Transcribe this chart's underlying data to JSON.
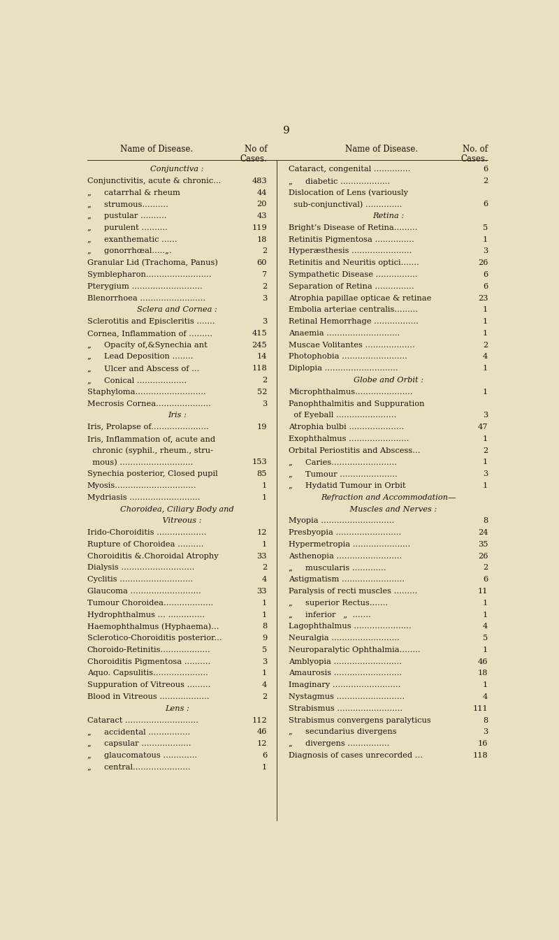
{
  "page_number": "9",
  "background_color": "#e8e0c0",
  "text_color": "#1a1008",
  "col1_header1": "Name of Disease.",
  "col1_header2": "No of\nCases.",
  "col2_header1": "Name of Disease.",
  "col2_header2": "No. of\nCases.",
  "left_column": [
    {
      "text": "Conjunctiva :",
      "style": "italic_section",
      "num": ""
    },
    {
      "text": "Conjunctivitis, acute & chronic...",
      "style": "normal",
      "num": "483"
    },
    {
      "text": "„     catarrhal & rheum",
      "style": "normal",
      "num": "44"
    },
    {
      "text": "„     strumous..........",
      "style": "normal",
      "num": "20"
    },
    {
      "text": "„     pustular ..........",
      "style": "normal",
      "num": "43"
    },
    {
      "text": "„     purulent ..........",
      "style": "normal",
      "num": "119"
    },
    {
      "text": "„     exanthematic ......",
      "style": "normal",
      "num": "18"
    },
    {
      "text": "„     gonorrhœal.....„.",
      "style": "normal",
      "num": "2"
    },
    {
      "text": "Granular Lid (Trachoma, Panus)",
      "style": "normal",
      "num": "60"
    },
    {
      "text": "Symblepharon.........................",
      "style": "normal",
      "num": "7"
    },
    {
      "text": "Pterygium ...........................",
      "style": "normal",
      "num": "2"
    },
    {
      "text": "Blenorrhoea .........................",
      "style": "normal",
      "num": "3"
    },
    {
      "text": "Sclera and Cornea :",
      "style": "italic_section",
      "num": ""
    },
    {
      "text": "Sclerotitis and Episcleritis .......",
      "style": "normal",
      "num": "3"
    },
    {
      "text": "Cornea, Inflammation of .........",
      "style": "normal",
      "num": "415"
    },
    {
      "text": "„     Opacity of,&Synechia ant",
      "style": "normal",
      "num": "245"
    },
    {
      "text": "„     Lead Deposition ........",
      "style": "normal",
      "num": "14"
    },
    {
      "text": "„     Ulcer and Abscess of ...",
      "style": "normal",
      "num": "118"
    },
    {
      "text": "„     Conical ...................",
      "style": "normal",
      "num": "2"
    },
    {
      "text": "Staphyloma...........................",
      "style": "normal",
      "num": "52"
    },
    {
      "text": "Mecrosis Cornea.....................",
      "style": "normal",
      "num": "3"
    },
    {
      "text": "Iris :",
      "style": "italic_section",
      "num": ""
    },
    {
      "text": "Iris, Prolapse of......................",
      "style": "normal",
      "num": "19"
    },
    {
      "text": "Iris, Inflammation of, acute and",
      "style": "normal",
      "num": ""
    },
    {
      "text": "  chronic (syphil., rheum., stru-",
      "style": "normal",
      "num": ""
    },
    {
      "text": "  mous) ............................",
      "style": "normal",
      "num": "153"
    },
    {
      "text": "Synechia posterior, Closed pupil",
      "style": "normal",
      "num": "85"
    },
    {
      "text": "Myosis...............................",
      "style": "normal",
      "num": "1"
    },
    {
      "text": "Mydriasis ...........................",
      "style": "normal",
      "num": "1"
    },
    {
      "text": "Choroidea, Ciliary Body and",
      "style": "italic_section",
      "num": ""
    },
    {
      "text": "    Vitreous :",
      "style": "italic_section",
      "num": ""
    },
    {
      "text": "Irido-Choroiditis ...................",
      "style": "normal",
      "num": "12"
    },
    {
      "text": "Rupture of Choroidea ..........",
      "style": "normal",
      "num": "1"
    },
    {
      "text": "Choroiditis &.Choroidal Atrophy",
      "style": "normal",
      "num": "33"
    },
    {
      "text": "Dialysis ............................",
      "style": "normal",
      "num": "2"
    },
    {
      "text": "Cyclitis ............................",
      "style": "normal",
      "num": "4"
    },
    {
      "text": "Glaucoma ...........................",
      "style": "normal",
      "num": "33"
    },
    {
      "text": "Tumour Choroidea...................",
      "style": "normal",
      "num": "1"
    },
    {
      "text": "Hydrophthalmus ... ..............",
      "style": "normal",
      "num": "1"
    },
    {
      "text": "Haemophthalmus (Hyphaema)...",
      "style": "normal",
      "num": "8"
    },
    {
      "text": "Sclerotico-Choroiditis posterior...",
      "style": "normal",
      "num": "9"
    },
    {
      "text": "Choroido-Retinitis...................",
      "style": "normal",
      "num": "5"
    },
    {
      "text": "Choroiditis Pigmentosa ..........",
      "style": "normal",
      "num": "3"
    },
    {
      "text": "Aquo. Capsulitis.....................",
      "style": "normal",
      "num": "1"
    },
    {
      "text": "Suppuration of Vitreous .........",
      "style": "normal",
      "num": "4"
    },
    {
      "text": "Blood in Vitreous ...................",
      "style": "normal",
      "num": "2"
    },
    {
      "text": "Lens :",
      "style": "italic_section",
      "num": ""
    },
    {
      "text": "Cataract ............................",
      "style": "normal",
      "num": "112"
    },
    {
      "text": "„     accidental ................",
      "style": "normal",
      "num": "46"
    },
    {
      "text": "„     capsular ...................",
      "style": "normal",
      "num": "12"
    },
    {
      "text": "„     glaucomatous .............",
      "style": "normal",
      "num": "6"
    },
    {
      "text": "„     central......................",
      "style": "normal",
      "num": "1"
    }
  ],
  "right_column": [
    {
      "text": "Cataract, congenital ..............",
      "style": "normal",
      "num": "6"
    },
    {
      "text": "„     diabetic ...................",
      "style": "normal",
      "num": "2"
    },
    {
      "text": "Dislocation of Lens (variously",
      "style": "normal",
      "num": ""
    },
    {
      "text": "  sub-conjunctival) ..............",
      "style": "normal",
      "num": "6"
    },
    {
      "text": "Retina :",
      "style": "italic_section",
      "num": ""
    },
    {
      "text": "Bright’s Disease of Retina.........",
      "style": "normal",
      "num": "5"
    },
    {
      "text": "Retinitis Pigmentosa ...............",
      "style": "normal",
      "num": "1"
    },
    {
      "text": "Hyperæsthesis .......................",
      "style": "normal",
      "num": "3"
    },
    {
      "text": "Retinitis and Neuritis optici.......",
      "style": "normal",
      "num": "26"
    },
    {
      "text": "Sympathetic Disease ................",
      "style": "normal",
      "num": "6"
    },
    {
      "text": "Separation of Retina ...............",
      "style": "normal",
      "num": "6"
    },
    {
      "text": "Atrophia papillae opticae & retinae",
      "style": "normal",
      "num": "23"
    },
    {
      "text": "Embolia arteriae centralis.........",
      "style": "normal",
      "num": "1"
    },
    {
      "text": "Retinal Hemorrhage .................",
      "style": "normal",
      "num": "1"
    },
    {
      "text": "Anaemia ............................",
      "style": "normal",
      "num": "1"
    },
    {
      "text": "Muscae Volitantes ...................",
      "style": "normal",
      "num": "2"
    },
    {
      "text": "Photophobia .........................",
      "style": "normal",
      "num": "4"
    },
    {
      "text": "Diplopia ............................",
      "style": "normal",
      "num": "1"
    },
    {
      "text": "Globe and Orbit :",
      "style": "italic_section",
      "num": ""
    },
    {
      "text": "Microphthalmus......................",
      "style": "normal",
      "num": "1"
    },
    {
      "text": "Panophthalmitis and Suppuration",
      "style": "normal",
      "num": ""
    },
    {
      "text": "  of Eyeball .......................",
      "style": "normal",
      "num": "3"
    },
    {
      "text": "Atrophia bulbi .....................",
      "style": "normal",
      "num": "47"
    },
    {
      "text": "Exophthalmus .......................",
      "style": "normal",
      "num": "1"
    },
    {
      "text": "Orbital Periostitis and Abscess...",
      "style": "normal",
      "num": "2"
    },
    {
      "text": "„     Caries.........................",
      "style": "normal",
      "num": "1"
    },
    {
      "text": "„     Tumour ......................",
      "style": "normal",
      "num": "3"
    },
    {
      "text": "„     Hydatid Tumour in Orbit",
      "style": "normal",
      "num": "1"
    },
    {
      "text": "Refraction and Accommodation—",
      "style": "italic_section",
      "num": ""
    },
    {
      "text": "    Muscles and Nerves :",
      "style": "italic_section",
      "num": ""
    },
    {
      "text": "Myopia ............................",
      "style": "normal",
      "num": "8"
    },
    {
      "text": "Presbyopia .........................",
      "style": "normal",
      "num": "24"
    },
    {
      "text": "Hypermetropia ......................",
      "style": "normal",
      "num": "35"
    },
    {
      "text": "Asthenopia .........................",
      "style": "normal",
      "num": "26"
    },
    {
      "text": "„     muscularis .............",
      "style": "normal",
      "num": "2"
    },
    {
      "text": "Astigmatism ........................",
      "style": "normal",
      "num": "6"
    },
    {
      "text": "Paralysis of recti muscles .........",
      "style": "normal",
      "num": "11"
    },
    {
      "text": "„     superior Rectus.......",
      "style": "normal",
      "num": "1"
    },
    {
      "text": "„     inferior   „  .......",
      "style": "normal",
      "num": "1"
    },
    {
      "text": "Lagophthalmus ......................",
      "style": "normal",
      "num": "4"
    },
    {
      "text": "Neuralgia ..........................",
      "style": "normal",
      "num": "5"
    },
    {
      "text": "Neuroparalytic Ophthalmia........",
      "style": "normal",
      "num": "1"
    },
    {
      "text": "Amblyopia ..........................",
      "style": "normal",
      "num": "46"
    },
    {
      "text": "Amaurosis ..........................",
      "style": "normal",
      "num": "18"
    },
    {
      "text": "Imaginary ..........................",
      "style": "normal",
      "num": "1"
    },
    {
      "text": "Nystagmus ..........................",
      "style": "normal",
      "num": "4"
    },
    {
      "text": "Strabismus .........................",
      "style": "normal",
      "num": "111"
    },
    {
      "text": "Strabismus convergens paralyticus",
      "style": "normal",
      "num": "8"
    },
    {
      "text": "„     secundarius divergens",
      "style": "normal",
      "num": "3"
    },
    {
      "text": "„     divergens ................",
      "style": "normal",
      "num": "16"
    },
    {
      "text": "Diagnosis of cases unrecorded ...",
      "style": "normal",
      "num": "118"
    }
  ]
}
